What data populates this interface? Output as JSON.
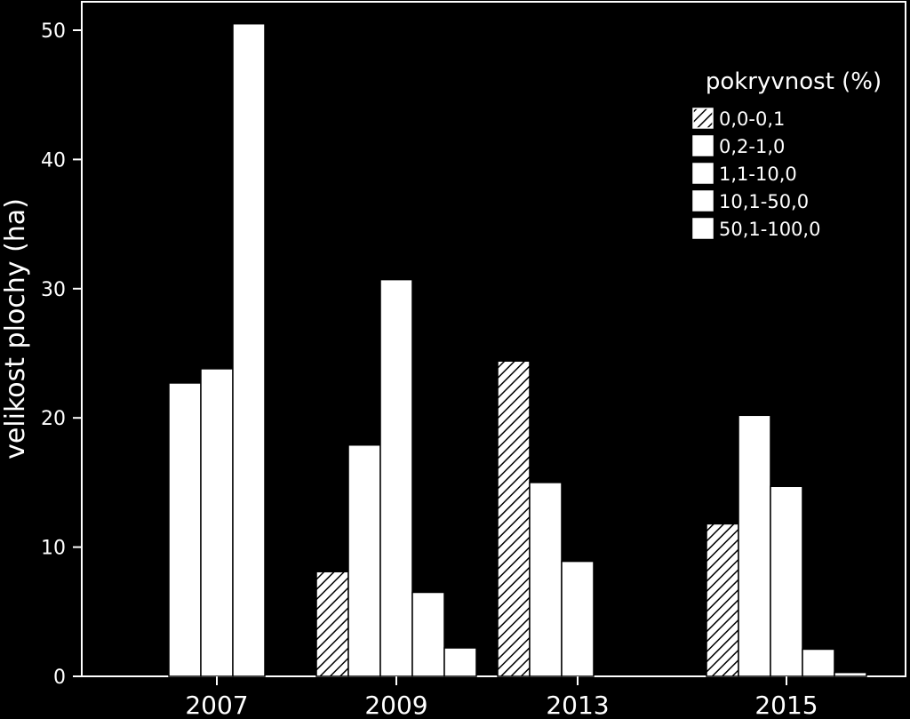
{
  "chart_data": {
    "type": "bar",
    "title": "",
    "xlabel": "",
    "ylabel": "velikost plochy (ha)",
    "ylim": [
      0,
      52
    ],
    "yticks": [
      0,
      10,
      20,
      30,
      40,
      50
    ],
    "categories": [
      "2007",
      "2009",
      "2013",
      "2015"
    ],
    "legend": {
      "title": "pokryvnost (%)",
      "placement": "top-right"
    },
    "series": [
      {
        "name": "0,0-0,1",
        "pattern": "hatch",
        "values": [
          0,
          8.1,
          24.4,
          11.8
        ]
      },
      {
        "name": "0,2-1,0",
        "pattern": "solid",
        "values": [
          22.7,
          17.9,
          15.0,
          20.2
        ]
      },
      {
        "name": "1,1-10,0",
        "pattern": "solid",
        "values": [
          23.8,
          30.7,
          8.9,
          14.7
        ]
      },
      {
        "name": "10,1-50,0",
        "pattern": "solid",
        "values": [
          50.5,
          6.5,
          0,
          2.1
        ]
      },
      {
        "name": "50,1-100,0",
        "pattern": "solid",
        "values": [
          0,
          2.2,
          0,
          0.3
        ]
      }
    ],
    "colors": {
      "background": "#000000",
      "bar_fill": "#ffffff",
      "hatch": "#000000",
      "axis": "#ffffff"
    },
    "grid": false
  }
}
